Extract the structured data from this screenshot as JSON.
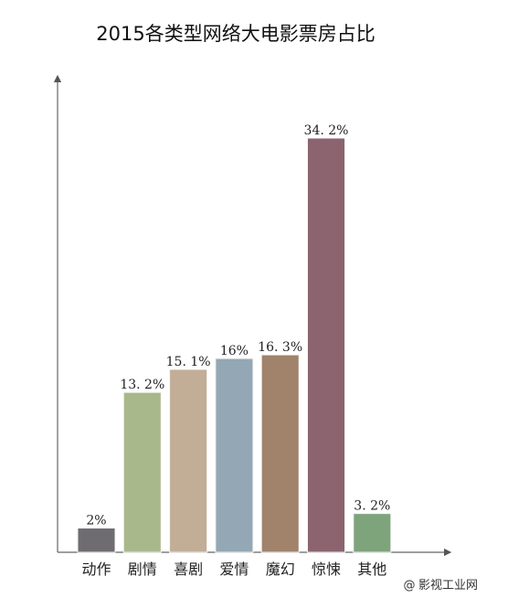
{
  "chart_data": {
    "type": "bar",
    "title": "2015各类型网络大电影票房占比",
    "categories": [
      "动作",
      "剧情",
      "喜剧",
      "爱情",
      "魔幻",
      "惊悚",
      "其他"
    ],
    "values": [
      2,
      13.2,
      15.1,
      16,
      16.3,
      34.2,
      3.2
    ],
    "value_labels": [
      "2%",
      "13. 2%",
      "15. 1%",
      "16%",
      "16. 3%",
      "34. 2%",
      "3. 2%"
    ],
    "colors": [
      "#6e6c70",
      "#a8b88a",
      "#c2ad96",
      "#93a8b4",
      "#a0836a",
      "#8c6470",
      "#7ea47c"
    ],
    "xlabel": "",
    "ylabel": "",
    "ylim": [
      0,
      40
    ],
    "grid": false,
    "legend": "none"
  },
  "watermark": {
    "icon": "at-sign-icon",
    "text": "影视工业网"
  }
}
